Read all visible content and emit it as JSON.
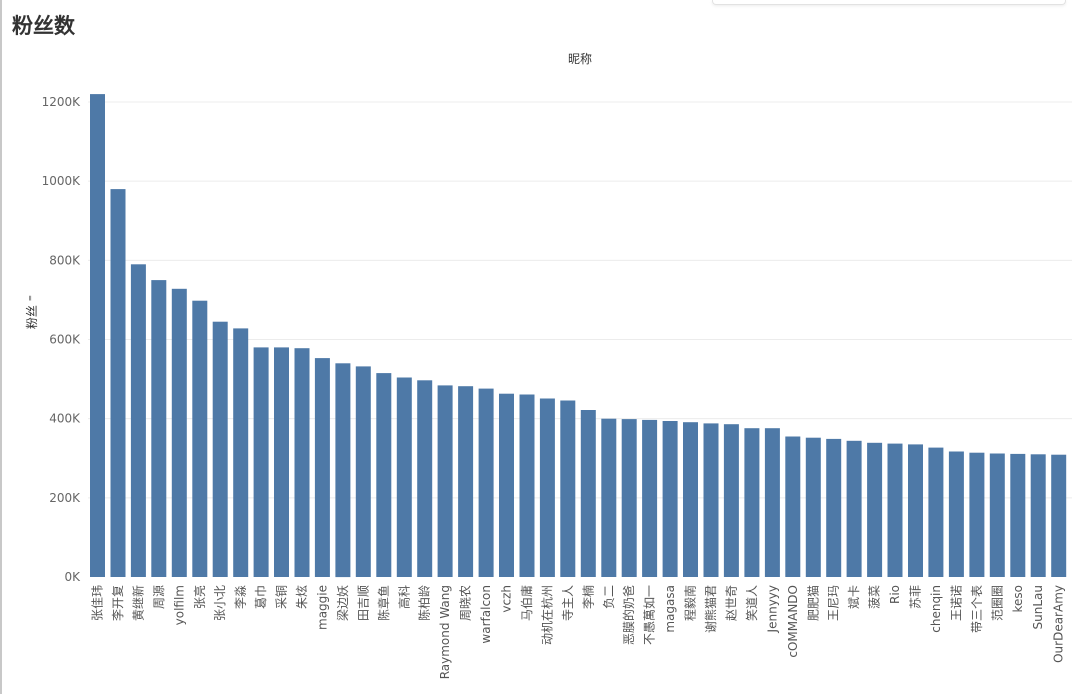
{
  "page_title": "粉丝数",
  "chart_data": {
    "type": "bar",
    "title": "粉丝数",
    "xlabel": "昵称",
    "ylabel": "粉丝 ⁼",
    "ylim": [
      0,
      1240000
    ],
    "yticks": [
      0,
      200000,
      400000,
      600000,
      800000,
      1000000,
      1200000
    ],
    "ytick_labels": [
      "0K",
      "200K",
      "400K",
      "600K",
      "800K",
      "1000K",
      "1200K"
    ],
    "grid": true,
    "bar_color": "#4E79A7",
    "categories": [
      "张佳玮",
      "李开复",
      "黄继新",
      "周源",
      "yolfilm",
      "张亮",
      "张小北",
      "李淼",
      "葛巾",
      "采铜",
      "朱炫",
      "maggie",
      "梁边妖",
      "田吉顺",
      "陈章鱼",
      "高科",
      "陈柏龄",
      "Raymond Wang",
      "周晓农",
      "warfalcon",
      "vczh",
      "马伯庸",
      "动机在杭州",
      "寺主人",
      "李楠",
      "负二",
      "恶膜的奶爸",
      "不愚萬如一",
      "magasa",
      "程毅南",
      "谢熊猫君",
      "赵世奇",
      "笑道人",
      "Jennyyy",
      "cOMMANDO",
      "肥肥猫",
      "王尼玛",
      "斌卡",
      "菠菜",
      "Rio",
      "苏菲",
      "chenqin",
      "王诺诺",
      "带三个表",
      "范圈圈",
      "keso",
      "SunLau",
      "OurDearAmy"
    ],
    "values": [
      1220000,
      980000,
      790000,
      750000,
      728000,
      698000,
      645000,
      628000,
      580000,
      580000,
      578000,
      553000,
      540000,
      532000,
      515000,
      504000,
      497000,
      484000,
      482000,
      476000,
      463000,
      461000,
      451000,
      446000,
      422000,
      400000,
      399000,
      397000,
      394000,
      391000,
      388000,
      386000,
      376000,
      376000,
      355000,
      352000,
      349000,
      344000,
      339000,
      337000,
      335000,
      327000,
      317000,
      314000,
      312000,
      311000,
      310000,
      309000
    ]
  }
}
